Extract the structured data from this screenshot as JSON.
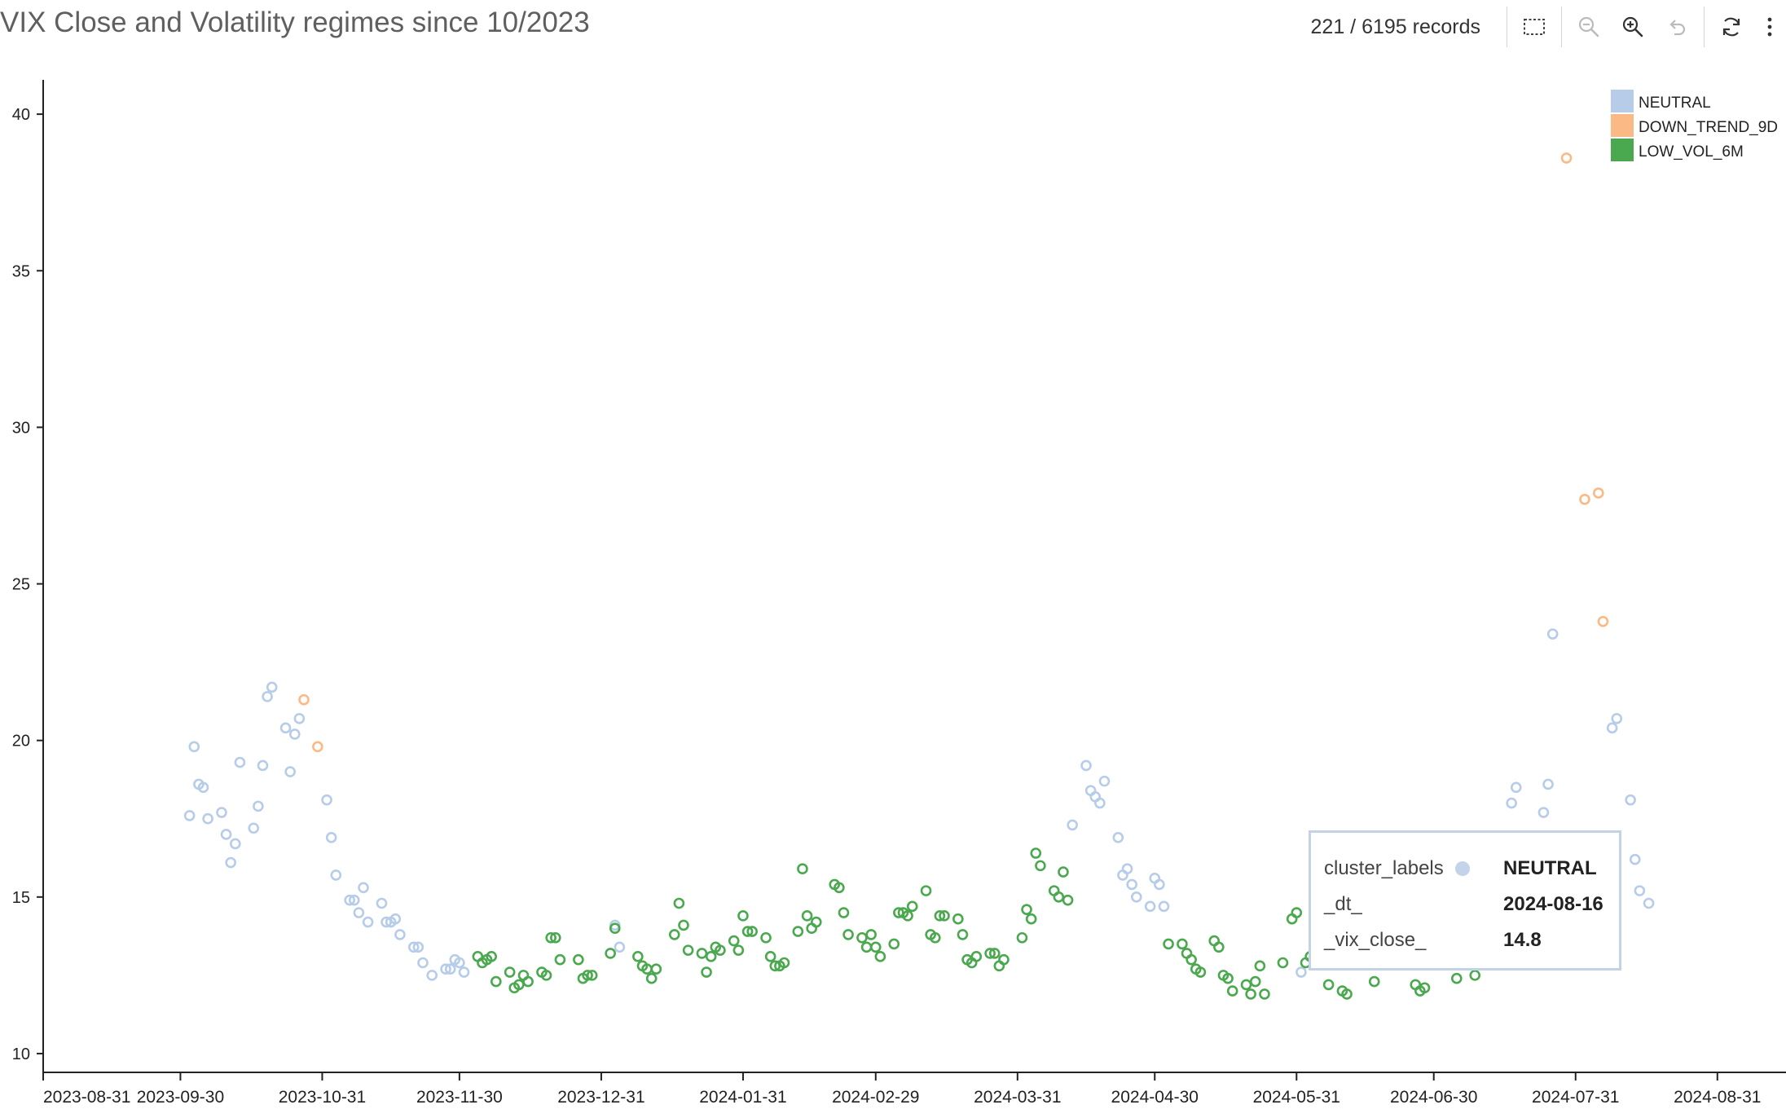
{
  "header": {
    "title": "VIX Close and Volatility regimes since 10/2023",
    "records": "221 / 6195 records"
  },
  "toolbar": {
    "icons": [
      "select-region-icon",
      "zoom-out-icon",
      "zoom-in-icon",
      "undo-icon",
      "refresh-icon",
      "more-icon"
    ]
  },
  "colors": {
    "NEUTRAL": "#b6cce9",
    "DOWN_TREND_9D": "#fbb985",
    "LOW_VOL_6M": "#4aa84e"
  },
  "tooltip": {
    "rows": [
      {
        "key": "cluster_labels",
        "value": "NEUTRAL"
      },
      {
        "key": "_dt_",
        "value": "2024-08-16"
      },
      {
        "key": "_vix_close_",
        "value": "14.8"
      }
    ]
  },
  "chart_data": {
    "type": "scatter",
    "title": "VIX Close and Volatility regimes since 10/2023",
    "xlabel": "",
    "ylabel": "",
    "xlim": [
      "2023-08-31",
      "2024-09-15"
    ],
    "ylim": [
      9.4,
      41.2
    ],
    "yticks": [
      10,
      15,
      20,
      25,
      30,
      35,
      40
    ],
    "xticks": [
      "2023-08-31",
      "2023-09-30",
      "2023-10-31",
      "2023-11-30",
      "2023-12-31",
      "2024-01-31",
      "2024-02-29",
      "2024-03-31",
      "2024-04-30",
      "2024-05-31",
      "2024-06-30",
      "2024-07-31",
      "2024-08-31"
    ],
    "legend": {
      "position": "top-right",
      "entries": [
        "NEUTRAL",
        "DOWN_TREND_9D",
        "LOW_VOL_6M"
      ]
    },
    "grid": false,
    "series": [
      {
        "name": "NEUTRAL",
        "points": [
          [
            "2023-10-02",
            17.6
          ],
          [
            "2023-10-03",
            19.8
          ],
          [
            "2023-10-04",
            18.6
          ],
          [
            "2023-10-05",
            18.5
          ],
          [
            "2023-10-06",
            17.5
          ],
          [
            "2023-10-09",
            17.7
          ],
          [
            "2023-10-10",
            17.0
          ],
          [
            "2023-10-11",
            16.1
          ],
          [
            "2023-10-12",
            16.7
          ],
          [
            "2023-10-13",
            19.3
          ],
          [
            "2023-10-16",
            17.2
          ],
          [
            "2023-10-17",
            17.9
          ],
          [
            "2023-10-18",
            19.2
          ],
          [
            "2023-10-19",
            21.4
          ],
          [
            "2023-10-20",
            21.7
          ],
          [
            "2023-10-23",
            20.4
          ],
          [
            "2023-10-24",
            19.0
          ],
          [
            "2023-10-25",
            20.2
          ],
          [
            "2023-10-26",
            20.7
          ],
          [
            "2023-11-01",
            18.1
          ],
          [
            "2023-11-02",
            16.9
          ],
          [
            "2023-11-03",
            15.7
          ],
          [
            "2023-11-06",
            14.9
          ],
          [
            "2023-11-07",
            14.9
          ],
          [
            "2023-11-08",
            14.5
          ],
          [
            "2023-11-09",
            15.3
          ],
          [
            "2023-11-10",
            14.2
          ],
          [
            "2023-11-13",
            14.8
          ],
          [
            "2023-11-14",
            14.2
          ],
          [
            "2023-11-15",
            14.2
          ],
          [
            "2023-11-16",
            14.3
          ],
          [
            "2023-11-17",
            13.8
          ],
          [
            "2023-11-20",
            13.4
          ],
          [
            "2023-11-21",
            13.4
          ],
          [
            "2023-11-22",
            12.9
          ],
          [
            "2023-11-24",
            12.5
          ],
          [
            "2023-11-27",
            12.7
          ],
          [
            "2023-11-28",
            12.7
          ],
          [
            "2023-11-29",
            13.0
          ],
          [
            "2023-11-30",
            12.9
          ],
          [
            "2023-12-01",
            12.6
          ],
          [
            "2024-01-03",
            14.1
          ],
          [
            "2024-01-04",
            13.4
          ],
          [
            "2024-04-12",
            17.3
          ],
          [
            "2024-04-15",
            19.2
          ],
          [
            "2024-04-16",
            18.4
          ],
          [
            "2024-04-17",
            18.2
          ],
          [
            "2024-04-18",
            18.0
          ],
          [
            "2024-04-19",
            18.7
          ],
          [
            "2024-04-22",
            16.9
          ],
          [
            "2024-04-23",
            15.7
          ],
          [
            "2024-04-24",
            15.9
          ],
          [
            "2024-04-25",
            15.4
          ],
          [
            "2024-04-26",
            15.0
          ],
          [
            "2024-04-29",
            14.7
          ],
          [
            "2024-04-30",
            15.6
          ],
          [
            "2024-05-01",
            15.4
          ],
          [
            "2024-05-02",
            14.7
          ],
          [
            "2024-06-01",
            12.6
          ],
          [
            "2024-07-17",
            18.0
          ],
          [
            "2024-07-18",
            18.5
          ],
          [
            "2024-07-24",
            17.7
          ],
          [
            "2024-07-25",
            18.6
          ],
          [
            "2024-07-26",
            23.4
          ],
          [
            "2024-08-08",
            20.4
          ],
          [
            "2024-08-09",
            20.7
          ],
          [
            "2024-08-12",
            18.1
          ],
          [
            "2024-08-13",
            16.2
          ],
          [
            "2024-08-14",
            15.2
          ],
          [
            "2024-08-16",
            14.8
          ]
        ]
      },
      {
        "name": "DOWN_TREND_9D",
        "points": [
          [
            "2023-10-27",
            21.3
          ],
          [
            "2023-10-30",
            19.8
          ],
          [
            "2024-07-29",
            38.6
          ],
          [
            "2024-08-02",
            27.7
          ],
          [
            "2024-08-05",
            27.9
          ],
          [
            "2024-08-06",
            23.8
          ]
        ]
      },
      {
        "name": "LOW_VOL_6M",
        "points": [
          [
            "2023-12-04",
            13.1
          ],
          [
            "2023-12-05",
            12.9
          ],
          [
            "2023-12-06",
            13.0
          ],
          [
            "2023-12-07",
            13.1
          ],
          [
            "2023-12-08",
            12.3
          ],
          [
            "2023-12-11",
            12.6
          ],
          [
            "2023-12-12",
            12.1
          ],
          [
            "2023-12-13",
            12.2
          ],
          [
            "2023-12-14",
            12.5
          ],
          [
            "2023-12-15",
            12.3
          ],
          [
            "2023-12-18",
            12.6
          ],
          [
            "2023-12-19",
            12.5
          ],
          [
            "2023-12-20",
            13.7
          ],
          [
            "2023-12-21",
            13.7
          ],
          [
            "2023-12-22",
            13.0
          ],
          [
            "2023-12-26",
            13.0
          ],
          [
            "2023-12-27",
            12.4
          ],
          [
            "2023-12-28",
            12.5
          ],
          [
            "2023-12-29",
            12.5
          ],
          [
            "2024-01-02",
            13.2
          ],
          [
            "2024-01-03",
            14.0
          ],
          [
            "2024-01-08",
            13.1
          ],
          [
            "2024-01-09",
            12.8
          ],
          [
            "2024-01-10",
            12.7
          ],
          [
            "2024-01-11",
            12.4
          ],
          [
            "2024-01-12",
            12.7
          ],
          [
            "2024-01-16",
            13.8
          ],
          [
            "2024-01-17",
            14.8
          ],
          [
            "2024-01-18",
            14.1
          ],
          [
            "2024-01-19",
            13.3
          ],
          [
            "2024-01-22",
            13.2
          ],
          [
            "2024-01-23",
            12.6
          ],
          [
            "2024-01-24",
            13.1
          ],
          [
            "2024-01-25",
            13.4
          ],
          [
            "2024-01-26",
            13.3
          ],
          [
            "2024-01-29",
            13.6
          ],
          [
            "2024-01-30",
            13.3
          ],
          [
            "2024-01-31",
            14.4
          ],
          [
            "2024-02-01",
            13.9
          ],
          [
            "2024-02-02",
            13.9
          ],
          [
            "2024-02-05",
            13.7
          ],
          [
            "2024-02-06",
            13.1
          ],
          [
            "2024-02-07",
            12.8
          ],
          [
            "2024-02-08",
            12.8
          ],
          [
            "2024-02-09",
            12.9
          ],
          [
            "2024-02-12",
            13.9
          ],
          [
            "2024-02-13",
            15.9
          ],
          [
            "2024-02-14",
            14.4
          ],
          [
            "2024-02-15",
            14.0
          ],
          [
            "2024-02-16",
            14.2
          ],
          [
            "2024-02-20",
            15.4
          ],
          [
            "2024-02-21",
            15.3
          ],
          [
            "2024-02-22",
            14.5
          ],
          [
            "2024-02-23",
            13.8
          ],
          [
            "2024-02-26",
            13.7
          ],
          [
            "2024-02-27",
            13.4
          ],
          [
            "2024-02-28",
            13.8
          ],
          [
            "2024-02-29",
            13.4
          ],
          [
            "2024-03-01",
            13.1
          ],
          [
            "2024-03-04",
            13.5
          ],
          [
            "2024-03-05",
            14.5
          ],
          [
            "2024-03-06",
            14.5
          ],
          [
            "2024-03-07",
            14.4
          ],
          [
            "2024-03-08",
            14.7
          ],
          [
            "2024-03-11",
            15.2
          ],
          [
            "2024-03-12",
            13.8
          ],
          [
            "2024-03-13",
            13.7
          ],
          [
            "2024-03-14",
            14.4
          ],
          [
            "2024-03-15",
            14.4
          ],
          [
            "2024-03-18",
            14.3
          ],
          [
            "2024-03-19",
            13.8
          ],
          [
            "2024-03-20",
            13.0
          ],
          [
            "2024-03-21",
            12.9
          ],
          [
            "2024-03-22",
            13.1
          ],
          [
            "2024-03-25",
            13.2
          ],
          [
            "2024-03-26",
            13.2
          ],
          [
            "2024-03-27",
            12.8
          ],
          [
            "2024-03-28",
            13.0
          ],
          [
            "2024-04-01",
            13.7
          ],
          [
            "2024-04-02",
            14.6
          ],
          [
            "2024-04-03",
            14.3
          ],
          [
            "2024-04-04",
            16.4
          ],
          [
            "2024-04-05",
            16.0
          ],
          [
            "2024-04-08",
            15.2
          ],
          [
            "2024-04-09",
            15.0
          ],
          [
            "2024-04-10",
            15.8
          ],
          [
            "2024-04-11",
            14.9
          ],
          [
            "2024-05-03",
            13.5
          ],
          [
            "2024-05-06",
            13.5
          ],
          [
            "2024-05-07",
            13.2
          ],
          [
            "2024-05-08",
            13.0
          ],
          [
            "2024-05-09",
            12.7
          ],
          [
            "2024-05-10",
            12.6
          ],
          [
            "2024-05-13",
            13.6
          ],
          [
            "2024-05-14",
            13.4
          ],
          [
            "2024-05-15",
            12.5
          ],
          [
            "2024-05-16",
            12.4
          ],
          [
            "2024-05-17",
            12.0
          ],
          [
            "2024-05-20",
            12.2
          ],
          [
            "2024-05-21",
            11.9
          ],
          [
            "2024-05-22",
            12.3
          ],
          [
            "2024-05-23",
            12.8
          ],
          [
            "2024-05-24",
            11.9
          ],
          [
            "2024-05-28",
            12.9
          ],
          [
            "2024-05-30",
            14.3
          ],
          [
            "2024-05-31",
            14.5
          ],
          [
            "2024-06-02",
            12.9
          ],
          [
            "2024-06-03",
            13.1
          ],
          [
            "2024-06-04",
            13.2
          ],
          [
            "2024-06-07",
            12.2
          ],
          [
            "2024-06-10",
            12.0
          ],
          [
            "2024-06-11",
            11.9
          ],
          [
            "2024-06-17",
            12.3
          ],
          [
            "2024-06-26",
            12.2
          ],
          [
            "2024-06-27",
            12.0
          ],
          [
            "2024-06-28",
            12.1
          ],
          [
            "2024-07-05",
            12.4
          ],
          [
            "2024-07-09",
            12.5
          ]
        ]
      }
    ]
  }
}
